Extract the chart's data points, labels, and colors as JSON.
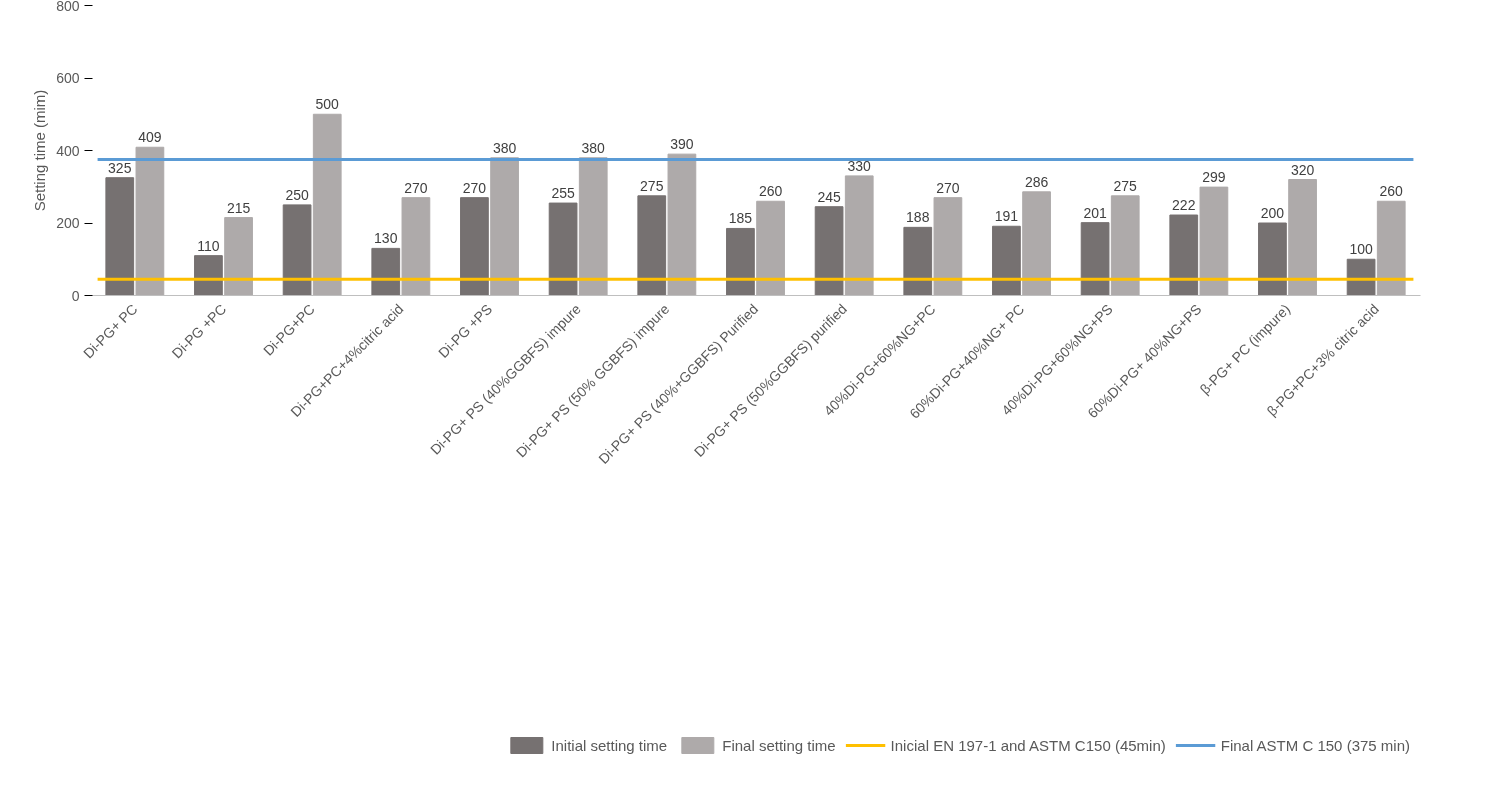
{
  "chart_data": {
    "type": "bar",
    "ylabel": "Setting time (mim)",
    "categories": [
      "Di-PG+ PC",
      "Di-PG +PC",
      "Di-PG+PC",
      "Di-PG+PC+4%citric acid",
      "Di-PG +PS",
      "Di-PG+ PS (40%GGBFS) impure",
      "Di-PG+ PS (50% GGBFS) impure",
      "Di-PG+ PS (40%+GGBFS) Purified",
      "Di-PG+ PS (50%GGBFS) purified",
      "40%Di-PG+60%NG+PC",
      "60%Di-PG+40%NG+ PC",
      "40%Di-PG+60%NG+PS",
      "60%Di-PG+ 40%NG+PS",
      "β-PG+ PC (impure)",
      "β-PG+PC+3% citric acid"
    ],
    "series": [
      {
        "name": "Initial setting time",
        "color": "#767171",
        "values": [
          325,
          110,
          250,
          130,
          270,
          255,
          275,
          185,
          245,
          188,
          191,
          201,
          222,
          200,
          100
        ]
      },
      {
        "name": "Final setting time",
        "color": "#aeaaaa",
        "values": [
          409,
          215,
          500,
          270,
          380,
          380,
          390,
          260,
          330,
          270,
          286,
          275,
          299,
          320,
          260
        ]
      }
    ],
    "ref_lines": [
      {
        "axis": "y",
        "value": 45,
        "label": "Inicial EN 197-1 and ASTM C150 (45min)",
        "color": "#ffc000"
      },
      {
        "axis": "y",
        "value": 375,
        "label": "Final ASTM C 150 (375 min)",
        "color": "#5b9bd5"
      }
    ],
    "ylim": [
      0,
      800
    ],
    "yticks": [
      0,
      200,
      400,
      600,
      800
    ],
    "data_labels": true,
    "grid": false,
    "legend": "bottom"
  }
}
